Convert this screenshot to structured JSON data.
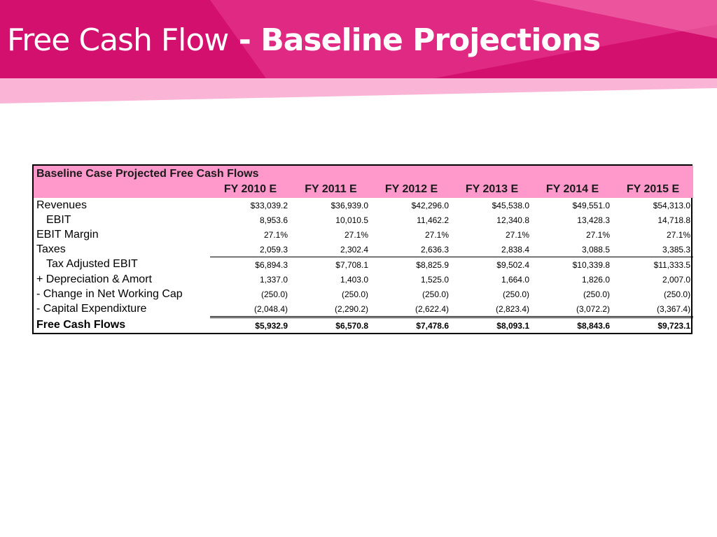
{
  "slide": {
    "title_light": "Free Cash Flow",
    "title_bold": "- Baseline Projections",
    "colors": {
      "banner_primary": "#d4106e",
      "banner_accent": "#ee4a9b",
      "banner_light": "#f9a8cf",
      "header_fill": "#ff99cc"
    }
  },
  "table": {
    "title": "Baseline Case Projected Free Cash Flows",
    "years": [
      "FY 2010 E",
      "FY 2011 E",
      "FY 2012 E",
      "FY 2013 E",
      "FY 2014 E",
      "FY 2015 E"
    ],
    "rows": [
      {
        "label": "Revenues",
        "values": [
          "$33,039.2",
          "$36,939.0",
          "$42,296.0",
          "$45,538.0",
          "$49,551.0",
          "$54,313.0"
        ]
      },
      {
        "label": "EBIT",
        "values": [
          "8,953.6",
          "10,010.5",
          "11,462.2",
          "12,340.8",
          "13,428.3",
          "14,718.8"
        ]
      },
      {
        "label": "EBIT Margin",
        "values": [
          "27.1%",
          "27.1%",
          "27.1%",
          "27.1%",
          "27.1%",
          "27.1%"
        ]
      },
      {
        "label": "Taxes",
        "values": [
          "2,059.3",
          "2,302.4",
          "2,636.3",
          "2,838.4",
          "3,088.5",
          "3,385.3"
        ]
      },
      {
        "label": "Tax Adjusted EBIT",
        "values": [
          "$6,894.3",
          "$7,708.1",
          "$8,825.9",
          "$9,502.4",
          "$10,339.8",
          "$11,333.5"
        ]
      },
      {
        "label": "+ Depreciation & Amort",
        "values": [
          "1,337.0",
          "1,403.0",
          "1,525.0",
          "1,664.0",
          "1,826.0",
          "2,007.0"
        ]
      },
      {
        "label": "-  Change in Net Working Cap",
        "values": [
          "(250.0)",
          "(250.0)",
          "(250.0)",
          "(250.0)",
          "(250.0)",
          "(250.0)"
        ]
      },
      {
        "label": "-  Capital Expendixture",
        "values": [
          "(2,048.4)",
          "(2,290.2)",
          "(2,622.4)",
          "(2,823.4)",
          "(3,072.2)",
          "(3,367.4)"
        ]
      },
      {
        "label": "Free Cash Flows",
        "values": [
          "$5,932.9",
          "$6,570.8",
          "$7,478.6",
          "$8,093.1",
          "$8,843.6",
          "$9,723.1"
        ]
      }
    ]
  }
}
